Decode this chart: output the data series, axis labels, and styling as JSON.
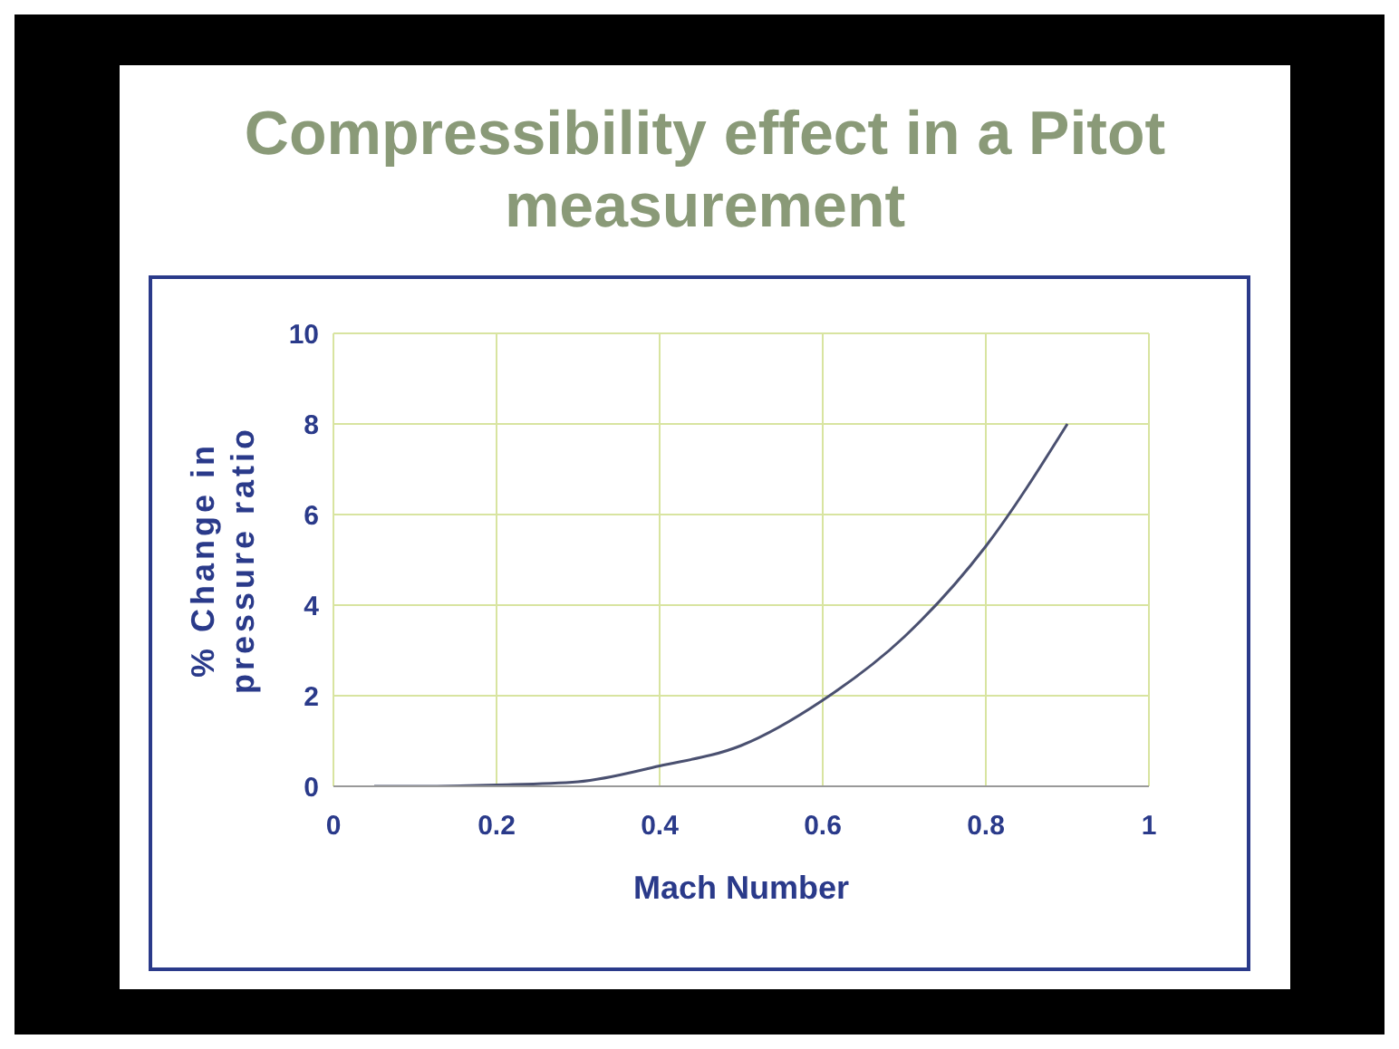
{
  "chart_data": {
    "type": "line",
    "title": "Compressibility effect in a Pitot measurement",
    "xlabel": "Mach Number",
    "ylabel": "% Change in pressure ratio",
    "x": [
      0.05,
      0.1,
      0.2,
      0.3,
      0.4,
      0.5,
      0.6,
      0.7,
      0.8,
      0.9
    ],
    "series": [
      {
        "color": "#4a5070",
        "values": [
          0,
          0,
          0.03,
          0.1,
          0.45,
          0.9,
          1.9,
          3.3,
          5.3,
          8.0
        ]
      }
    ],
    "xlim": [
      0,
      1
    ],
    "xticks": [
      0,
      0.2,
      0.4,
      0.6,
      0.8,
      1
    ],
    "ylim": [
      0,
      10
    ],
    "yticks": [
      0,
      2,
      4,
      6,
      8,
      10
    ],
    "grid": true,
    "marker": "none",
    "line_style": "solid",
    "legend": false
  }
}
